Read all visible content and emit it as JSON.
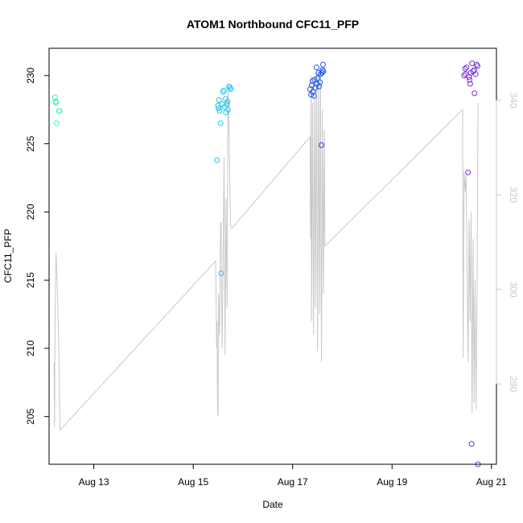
{
  "chart_data": {
    "type": "scatter",
    "title": "ATOM1 Northbound CFC11_PFP",
    "xlabel": "Date",
    "ylabel": "CFC11_PFP",
    "x_ticks": [
      "Aug 13",
      "Aug 15",
      "Aug 17",
      "Aug 19",
      "Aug 21"
    ],
    "x_tick_days": [
      13,
      15,
      17,
      19,
      21
    ],
    "xlim": [
      12.1,
      21.1
    ],
    "y_ticks": [
      205,
      210,
      215,
      220,
      225,
      230
    ],
    "ylim": [
      201.5,
      232.0
    ],
    "y2_ticks": [
      280,
      300,
      320,
      340
    ],
    "y2lim": [
      263,
      351
    ],
    "grid": false,
    "legend": "none",
    "line_color": "#c8c8c8",
    "points": [
      {
        "x": 12.22,
        "y": 228.4,
        "color": "#2ef5c0"
      },
      {
        "x": 12.23,
        "y": 228.1,
        "color": "#2ef5c0"
      },
      {
        "x": 12.24,
        "y": 228.0,
        "color": "#2ef5c0"
      },
      {
        "x": 12.25,
        "y": 226.5,
        "color": "#2ef5c0"
      },
      {
        "x": 12.3,
        "y": 227.4,
        "color": "#2ef5c0"
      },
      {
        "x": 12.31,
        "y": 227.4,
        "color": "#2ef5c0"
      },
      {
        "x": 15.48,
        "y": 223.8,
        "color": "#22c5ee"
      },
      {
        "x": 15.5,
        "y": 227.8,
        "color": "#22c5ee"
      },
      {
        "x": 15.51,
        "y": 227.6,
        "color": "#22c5ee"
      },
      {
        "x": 15.52,
        "y": 228.2,
        "color": "#22c5ee"
      },
      {
        "x": 15.53,
        "y": 227.4,
        "color": "#22c5ee"
      },
      {
        "x": 15.55,
        "y": 226.5,
        "color": "#22c5ee"
      },
      {
        "x": 15.56,
        "y": 215.5,
        "color": "#22c5ee"
      },
      {
        "x": 15.58,
        "y": 227.9,
        "color": "#22c5ee"
      },
      {
        "x": 15.6,
        "y": 228.8,
        "color": "#22c5ee"
      },
      {
        "x": 15.62,
        "y": 228.9,
        "color": "#22c5ee"
      },
      {
        "x": 15.63,
        "y": 227.7,
        "color": "#22c5ee"
      },
      {
        "x": 15.65,
        "y": 228.3,
        "color": "#22c5ee"
      },
      {
        "x": 15.66,
        "y": 227.3,
        "color": "#22c5ee"
      },
      {
        "x": 15.68,
        "y": 227.9,
        "color": "#22c5ee"
      },
      {
        "x": 15.69,
        "y": 228.1,
        "color": "#22c5ee"
      },
      {
        "x": 15.7,
        "y": 227.5,
        "color": "#22c5ee"
      },
      {
        "x": 15.72,
        "y": 229.2,
        "color": "#22c5ee"
      },
      {
        "x": 15.74,
        "y": 229.1,
        "color": "#22c5ee"
      },
      {
        "x": 15.76,
        "y": 229.0,
        "color": "#22c5ee"
      },
      {
        "x": 17.35,
        "y": 229.0,
        "color": "#1a55e8"
      },
      {
        "x": 17.37,
        "y": 228.6,
        "color": "#1a55e8"
      },
      {
        "x": 17.38,
        "y": 229.3,
        "color": "#1a55e8"
      },
      {
        "x": 17.4,
        "y": 229.6,
        "color": "#1a55e8"
      },
      {
        "x": 17.41,
        "y": 228.8,
        "color": "#1a55e8"
      },
      {
        "x": 17.43,
        "y": 228.5,
        "color": "#1a55e8"
      },
      {
        "x": 17.44,
        "y": 229.7,
        "color": "#1a55e8"
      },
      {
        "x": 17.46,
        "y": 229.1,
        "color": "#1a55e8"
      },
      {
        "x": 17.48,
        "y": 230.6,
        "color": "#1a55e8"
      },
      {
        "x": 17.49,
        "y": 229.4,
        "color": "#1a55e8"
      },
      {
        "x": 17.5,
        "y": 229.8,
        "color": "#1a55e8"
      },
      {
        "x": 17.52,
        "y": 230.2,
        "color": "#1a55e8"
      },
      {
        "x": 17.53,
        "y": 229.2,
        "color": "#1a55e8"
      },
      {
        "x": 17.55,
        "y": 229.5,
        "color": "#1a55e8"
      },
      {
        "x": 17.56,
        "y": 230.1,
        "color": "#1a55e8"
      },
      {
        "x": 17.58,
        "y": 224.9,
        "color": "#1a55e8"
      },
      {
        "x": 17.59,
        "y": 230.2,
        "color": "#1a55e8"
      },
      {
        "x": 17.6,
        "y": 230.4,
        "color": "#1a55e8"
      },
      {
        "x": 17.61,
        "y": 230.8,
        "color": "#1a55e8"
      },
      {
        "x": 17.62,
        "y": 230.3,
        "color": "#1a55e8"
      },
      {
        "x": 20.45,
        "y": 230.0,
        "color": "#7a2ee0"
      },
      {
        "x": 20.47,
        "y": 230.5,
        "color": "#7a2ee0"
      },
      {
        "x": 20.48,
        "y": 230.1,
        "color": "#7a2ee0"
      },
      {
        "x": 20.5,
        "y": 230.6,
        "color": "#7a2ee0"
      },
      {
        "x": 20.53,
        "y": 222.9,
        "color": "#7a2ee0"
      },
      {
        "x": 20.55,
        "y": 229.9,
        "color": "#7a2ee0"
      },
      {
        "x": 20.56,
        "y": 229.7,
        "color": "#7a2ee0"
      },
      {
        "x": 20.57,
        "y": 229.4,
        "color": "#7a2ee0"
      },
      {
        "x": 20.58,
        "y": 230.2,
        "color": "#7a2ee0"
      },
      {
        "x": 20.6,
        "y": 203.0,
        "color": "#7a2ee0"
      },
      {
        "x": 20.61,
        "y": 230.9,
        "color": "#7a2ee0"
      },
      {
        "x": 20.63,
        "y": 230.3,
        "color": "#7a2ee0"
      },
      {
        "x": 20.65,
        "y": 230.4,
        "color": "#7a2ee0"
      },
      {
        "x": 20.66,
        "y": 228.7,
        "color": "#7a2ee0"
      },
      {
        "x": 20.68,
        "y": 230.1,
        "color": "#7a2ee0"
      },
      {
        "x": 20.7,
        "y": 230.8,
        "color": "#7a2ee0"
      },
      {
        "x": 20.72,
        "y": 230.7,
        "color": "#7a2ee0"
      },
      {
        "x": 20.73,
        "y": 201.5,
        "color": "#7a2ee0"
      }
    ],
    "line": [
      [
        12.2,
        209.0
      ],
      [
        12.21,
        204.2
      ],
      [
        12.22,
        212.0
      ],
      [
        12.24,
        217.0
      ],
      [
        12.27,
        214.0
      ],
      [
        12.3,
        209.0
      ],
      [
        12.32,
        204.0
      ],
      [
        15.45,
        216.4
      ],
      [
        15.47,
        210.0
      ],
      [
        15.48,
        212.0
      ],
      [
        15.49,
        205.3
      ],
      [
        15.5,
        205.0
      ],
      [
        15.51,
        214.0
      ],
      [
        15.53,
        211.0
      ],
      [
        15.55,
        219.2
      ],
      [
        15.56,
        219.2
      ],
      [
        15.58,
        210.0
      ],
      [
        15.6,
        216.0
      ],
      [
        15.62,
        224.0
      ],
      [
        15.64,
        209.5
      ],
      [
        15.66,
        221.0
      ],
      [
        15.68,
        213.0
      ],
      [
        15.7,
        229.3
      ],
      [
        15.72,
        226.0
      ],
      [
        15.75,
        219.0
      ],
      [
        15.78,
        218.8
      ],
      [
        17.35,
        225.5
      ],
      [
        17.36,
        218.0
      ],
      [
        17.37,
        230.0
      ],
      [
        17.38,
        212.0
      ],
      [
        17.4,
        228.0
      ],
      [
        17.42,
        211.0
      ],
      [
        17.44,
        229.5
      ],
      [
        17.46,
        213.0
      ],
      [
        17.48,
        230.3
      ],
      [
        17.5,
        209.8
      ],
      [
        17.52,
        230.0
      ],
      [
        17.54,
        212.5
      ],
      [
        17.56,
        230.6
      ],
      [
        17.58,
        209.0
      ],
      [
        17.6,
        227.5
      ],
      [
        17.62,
        214.0
      ],
      [
        17.64,
        226.0
      ],
      [
        17.65,
        217.5
      ],
      [
        20.42,
        227.5
      ],
      [
        20.43,
        209.3
      ],
      [
        20.45,
        223.0
      ],
      [
        20.47,
        221.5
      ],
      [
        20.49,
        222.8
      ],
      [
        20.51,
        215.0
      ],
      [
        20.53,
        209.0
      ],
      [
        20.55,
        219.5
      ],
      [
        20.57,
        212.0
      ],
      [
        20.59,
        220.0
      ],
      [
        20.61,
        205.2
      ],
      [
        20.63,
        218.0
      ],
      [
        20.65,
        206.0
      ],
      [
        20.67,
        215.0
      ],
      [
        20.69,
        205.5
      ],
      [
        20.71,
        214.0
      ],
      [
        20.73,
        228.0
      ]
    ]
  }
}
